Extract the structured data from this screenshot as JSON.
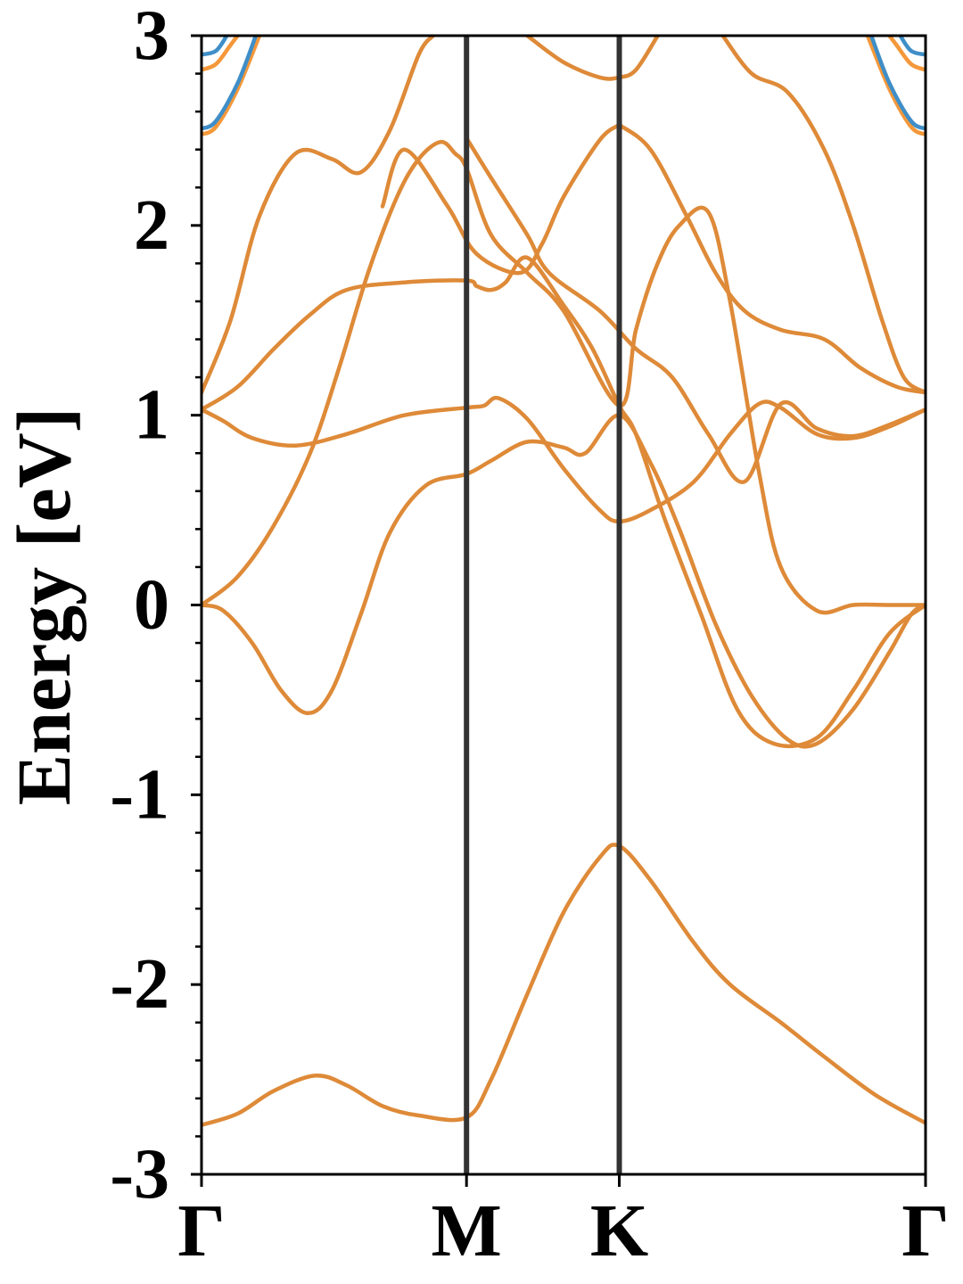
{
  "chart_data": {
    "type": "line",
    "title": "",
    "xlabel": "",
    "ylabel": "Energy [eV]",
    "ylim": [
      -3,
      3
    ],
    "xlim": [
      0,
      1
    ],
    "y_ticks": [
      -3,
      -2,
      -1,
      0,
      1,
      2,
      3
    ],
    "y_tick_labels": [
      "-3",
      "-2",
      "-1",
      "0",
      "1",
      "2",
      "3"
    ],
    "y_minor_step": 0.2,
    "high_symmetry_points": [
      {
        "label": "Γ",
        "x": 0.0
      },
      {
        "label": "M",
        "x": 0.366
      },
      {
        "label": "K",
        "x": 0.577
      },
      {
        "label": "Γ",
        "x": 1.0
      }
    ],
    "vertical_lines_at": [
      0.366,
      0.577
    ],
    "colors": {
      "series_a": "#3f8ec7",
      "series_b": "#f4983a",
      "overlap": "#de8a38",
      "vline": "#333333",
      "axes": "#000000"
    },
    "series": [
      {
        "color_key": "overlap",
        "points": [
          [
            0,
            -2.74
          ],
          [
            0.05,
            -2.68
          ],
          [
            0.1,
            -2.56
          ],
          [
            0.157,
            -2.48
          ],
          [
            0.2,
            -2.53
          ],
          [
            0.25,
            -2.64
          ],
          [
            0.3,
            -2.69
          ],
          [
            0.366,
            -2.7
          ],
          [
            0.4,
            -2.5
          ],
          [
            0.45,
            -2.05
          ],
          [
            0.5,
            -1.62
          ],
          [
            0.55,
            -1.33
          ],
          [
            0.577,
            -1.27
          ],
          [
            0.62,
            -1.45
          ],
          [
            0.68,
            -1.78
          ],
          [
            0.73,
            -2.0
          ],
          [
            0.8,
            -2.2
          ],
          [
            0.86,
            -2.38
          ],
          [
            0.93,
            -2.58
          ],
          [
            1.0,
            -2.73
          ]
        ]
      },
      {
        "color_key": "overlap",
        "points": [
          [
            0,
            0
          ],
          [
            0.03,
            -0.03
          ],
          [
            0.07,
            -0.2
          ],
          [
            0.11,
            -0.45
          ],
          [
            0.147,
            -0.57
          ],
          [
            0.18,
            -0.45
          ],
          [
            0.22,
            -0.05
          ],
          [
            0.26,
            0.38
          ],
          [
            0.31,
            0.63
          ],
          [
            0.366,
            0.69
          ],
          [
            0.4,
            0.76
          ],
          [
            0.45,
            0.86
          ],
          [
            0.5,
            0.83
          ],
          [
            0.53,
            0.8
          ],
          [
            0.577,
            1.0
          ],
          [
            0.62,
            0.75
          ],
          [
            0.66,
            0.4
          ],
          [
            0.71,
            -0.1
          ],
          [
            0.76,
            -0.48
          ],
          [
            0.81,
            -0.71
          ],
          [
            0.85,
            -0.73
          ],
          [
            0.9,
            -0.55
          ],
          [
            0.95,
            -0.25
          ],
          [
            0.98,
            -0.05
          ],
          [
            1.0,
            0
          ]
        ]
      },
      {
        "color_key": "overlap",
        "points": [
          [
            0,
            0
          ],
          [
            0.05,
            0.15
          ],
          [
            0.1,
            0.42
          ],
          [
            0.15,
            0.8
          ],
          [
            0.19,
            1.25
          ],
          [
            0.23,
            1.75
          ],
          [
            0.27,
            2.15
          ],
          [
            0.3,
            2.35
          ],
          [
            0.33,
            2.44
          ],
          [
            0.35,
            2.38
          ],
          [
            0.366,
            2.3
          ],
          [
            0.4,
            1.95
          ],
          [
            0.45,
            1.75
          ],
          [
            0.5,
            1.55
          ],
          [
            0.577,
            1.05
          ],
          [
            0.6,
            1.45
          ],
          [
            0.63,
            1.8
          ],
          [
            0.66,
            2.0
          ],
          [
            0.7,
            2.07
          ],
          [
            0.73,
            1.6
          ],
          [
            0.77,
            0.7
          ],
          [
            0.8,
            0.2
          ],
          [
            0.85,
            -0.03
          ],
          [
            0.9,
            0
          ],
          [
            0.95,
            0
          ],
          [
            1.0,
            0
          ]
        ]
      },
      {
        "color_key": "overlap",
        "points": [
          [
            0,
            1.03
          ],
          [
            0.03,
            0.97
          ],
          [
            0.07,
            0.88
          ],
          [
            0.13,
            0.84
          ],
          [
            0.2,
            0.9
          ],
          [
            0.28,
            1.0
          ],
          [
            0.366,
            1.04
          ],
          [
            0.39,
            1.05
          ],
          [
            0.41,
            1.09
          ],
          [
            0.45,
            0.98
          ],
          [
            0.5,
            0.72
          ],
          [
            0.55,
            0.5
          ],
          [
            0.577,
            0.44
          ],
          [
            0.62,
            0.5
          ],
          [
            0.68,
            0.65
          ],
          [
            0.73,
            0.9
          ],
          [
            0.77,
            1.06
          ],
          [
            0.8,
            1.04
          ],
          [
            0.85,
            0.9
          ],
          [
            0.9,
            0.88
          ],
          [
            0.95,
            0.94
          ],
          [
            1.0,
            1.03
          ]
        ]
      },
      {
        "color_key": "overlap",
        "points": [
          [
            0,
            1.03
          ],
          [
            0.05,
            1.15
          ],
          [
            0.1,
            1.35
          ],
          [
            0.15,
            1.53
          ],
          [
            0.2,
            1.66
          ],
          [
            0.28,
            1.7
          ],
          [
            0.366,
            1.71
          ],
          [
            0.38,
            1.68
          ],
          [
            0.4,
            1.66
          ],
          [
            0.42,
            1.7
          ],
          [
            0.45,
            1.83
          ],
          [
            0.5,
            1.58
          ],
          [
            0.54,
            1.35
          ],
          [
            0.577,
            1.05
          ],
          [
            0.6,
            0.9
          ],
          [
            0.64,
            0.45
          ],
          [
            0.69,
            -0.05
          ],
          [
            0.74,
            -0.55
          ],
          [
            0.79,
            -0.73
          ],
          [
            0.85,
            -0.7
          ],
          [
            0.9,
            -0.45
          ],
          [
            0.95,
            -0.15
          ],
          [
            1.0,
            0
          ]
        ]
      },
      {
        "color_key": "overlap",
        "points": [
          [
            0,
            1.12
          ],
          [
            0.04,
            1.5
          ],
          [
            0.08,
            2.05
          ],
          [
            0.13,
            2.38
          ],
          [
            0.18,
            2.35
          ],
          [
            0.22,
            2.28
          ],
          [
            0.26,
            2.5
          ],
          [
            0.3,
            2.9
          ],
          [
            0.32,
            3.0
          ]
        ]
      },
      {
        "color_key": "overlap",
        "points": [
          [
            0.366,
            2.46
          ],
          [
            0.4,
            2.25
          ],
          [
            0.45,
            1.95
          ],
          [
            0.48,
            1.75
          ],
          [
            0.55,
            1.55
          ],
          [
            0.6,
            1.35
          ],
          [
            0.65,
            1.2
          ],
          [
            0.7,
            0.9
          ],
          [
            0.75,
            0.65
          ],
          [
            0.8,
            1.06
          ],
          [
            0.85,
            0.93
          ],
          [
            0.9,
            0.89
          ],
          [
            0.95,
            0.95
          ],
          [
            1.0,
            1.03
          ]
        ]
      },
      {
        "color_key": "overlap",
        "points": [
          [
            0.45,
            3.0
          ],
          [
            0.5,
            2.86
          ],
          [
            0.55,
            2.78
          ],
          [
            0.577,
            2.78
          ],
          [
            0.6,
            2.82
          ],
          [
            0.63,
            3.0
          ]
        ]
      },
      {
        "color_key": "overlap",
        "points": [
          [
            0.577,
            2.53
          ],
          [
            0.55,
            2.45
          ],
          [
            0.5,
            2.15
          ],
          [
            0.47,
            1.9
          ],
          [
            0.44,
            1.75
          ],
          [
            0.38,
            1.85
          ],
          [
            0.34,
            2.1
          ],
          [
            0.28,
            2.4
          ],
          [
            0.25,
            2.1
          ]
        ]
      },
      {
        "color_key": "overlap",
        "points": [
          [
            0.577,
            2.53
          ],
          [
            0.62,
            2.4
          ],
          [
            0.67,
            2.05
          ],
          [
            0.71,
            1.75
          ],
          [
            0.75,
            1.55
          ],
          [
            0.8,
            1.45
          ],
          [
            0.86,
            1.4
          ],
          [
            0.91,
            1.25
          ],
          [
            0.96,
            1.15
          ],
          [
            1.0,
            1.12
          ]
        ]
      },
      {
        "color_key": "overlap",
        "points": [
          [
            0.72,
            3.0
          ],
          [
            0.76,
            2.8
          ],
          [
            0.81,
            2.7
          ],
          [
            0.86,
            2.4
          ],
          [
            0.9,
            2.0
          ],
          [
            0.94,
            1.5
          ],
          [
            0.97,
            1.2
          ],
          [
            1.0,
            1.12
          ]
        ]
      },
      {
        "color_key": "series_b",
        "points": [
          [
            0,
            2.48
          ],
          [
            0.02,
            2.52
          ],
          [
            0.05,
            2.72
          ],
          [
            0.08,
            3.0
          ]
        ]
      },
      {
        "color_key": "series_a",
        "points": [
          [
            0,
            2.51
          ],
          [
            0.02,
            2.55
          ],
          [
            0.05,
            2.75
          ],
          [
            0.075,
            3.0
          ]
        ]
      },
      {
        "color_key": "series_b",
        "points": [
          [
            0,
            2.82
          ],
          [
            0.02,
            2.85
          ],
          [
            0.04,
            2.95
          ],
          [
            0.05,
            3.0
          ]
        ]
      },
      {
        "color_key": "series_a",
        "points": [
          [
            0,
            2.9
          ],
          [
            0.02,
            2.92
          ],
          [
            0.035,
            3.0
          ]
        ]
      },
      {
        "color_key": "series_b",
        "points": [
          [
            1.0,
            2.48
          ],
          [
            0.98,
            2.52
          ],
          [
            0.95,
            2.72
          ],
          [
            0.92,
            3.0
          ]
        ]
      },
      {
        "color_key": "series_a",
        "points": [
          [
            1.0,
            2.51
          ],
          [
            0.98,
            2.55
          ],
          [
            0.95,
            2.75
          ],
          [
            0.925,
            3.0
          ]
        ]
      },
      {
        "color_key": "series_b",
        "points": [
          [
            1.0,
            2.82
          ],
          [
            0.98,
            2.85
          ],
          [
            0.96,
            2.95
          ],
          [
            0.95,
            3.0
          ]
        ]
      },
      {
        "color_key": "series_a",
        "points": [
          [
            1.0,
            2.9
          ],
          [
            0.98,
            2.92
          ],
          [
            0.965,
            3.0
          ]
        ]
      }
    ]
  }
}
